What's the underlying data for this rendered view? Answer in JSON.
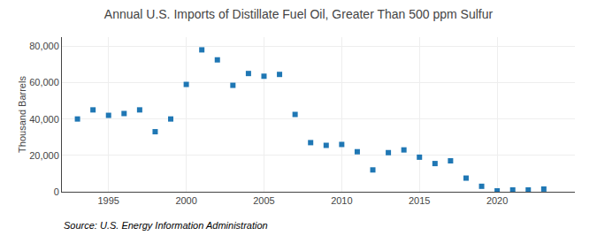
{
  "chart_data": {
    "type": "scatter",
    "title": "Annual U.S. Imports of Distillate Fuel Oil, Greater Than 500 ppm Sulfur",
    "ylabel": "Thousand Barrels",
    "annotations": [
      "Source: U.S. Energy Information Administration"
    ],
    "x": [
      1993,
      1994,
      1995,
      1996,
      1997,
      1998,
      1999,
      2000,
      2001,
      2002,
      2003,
      2004,
      2005,
      2006,
      2007,
      2008,
      2009,
      2010,
      2011,
      2012,
      2013,
      2014,
      2015,
      2016,
      2017,
      2018,
      2019,
      2020,
      2021,
      2022,
      2023
    ],
    "values": [
      40000,
      45000,
      42000,
      43000,
      45000,
      33000,
      40000,
      59000,
      78000,
      72500,
      58500,
      65000,
      63500,
      64500,
      42500,
      27000,
      25500,
      26000,
      22000,
      12000,
      21500,
      23000,
      19000,
      15500,
      17000,
      7500,
      3000,
      500,
      1000,
      1000,
      1500
    ],
    "marker": "square",
    "xlim": [
      1992,
      2025
    ],
    "xticks": [
      1995,
      2000,
      2005,
      2010,
      2015,
      2020
    ],
    "ylim": [
      0,
      85000
    ],
    "yticks": [
      0,
      {
        "value": 20000,
        "label": "20,000"
      },
      {
        "value": 40000,
        "label": "40,000"
      },
      {
        "value": 60000,
        "label": "60,000"
      },
      {
        "value": 80000,
        "label": "80,000"
      }
    ],
    "grid": true
  }
}
